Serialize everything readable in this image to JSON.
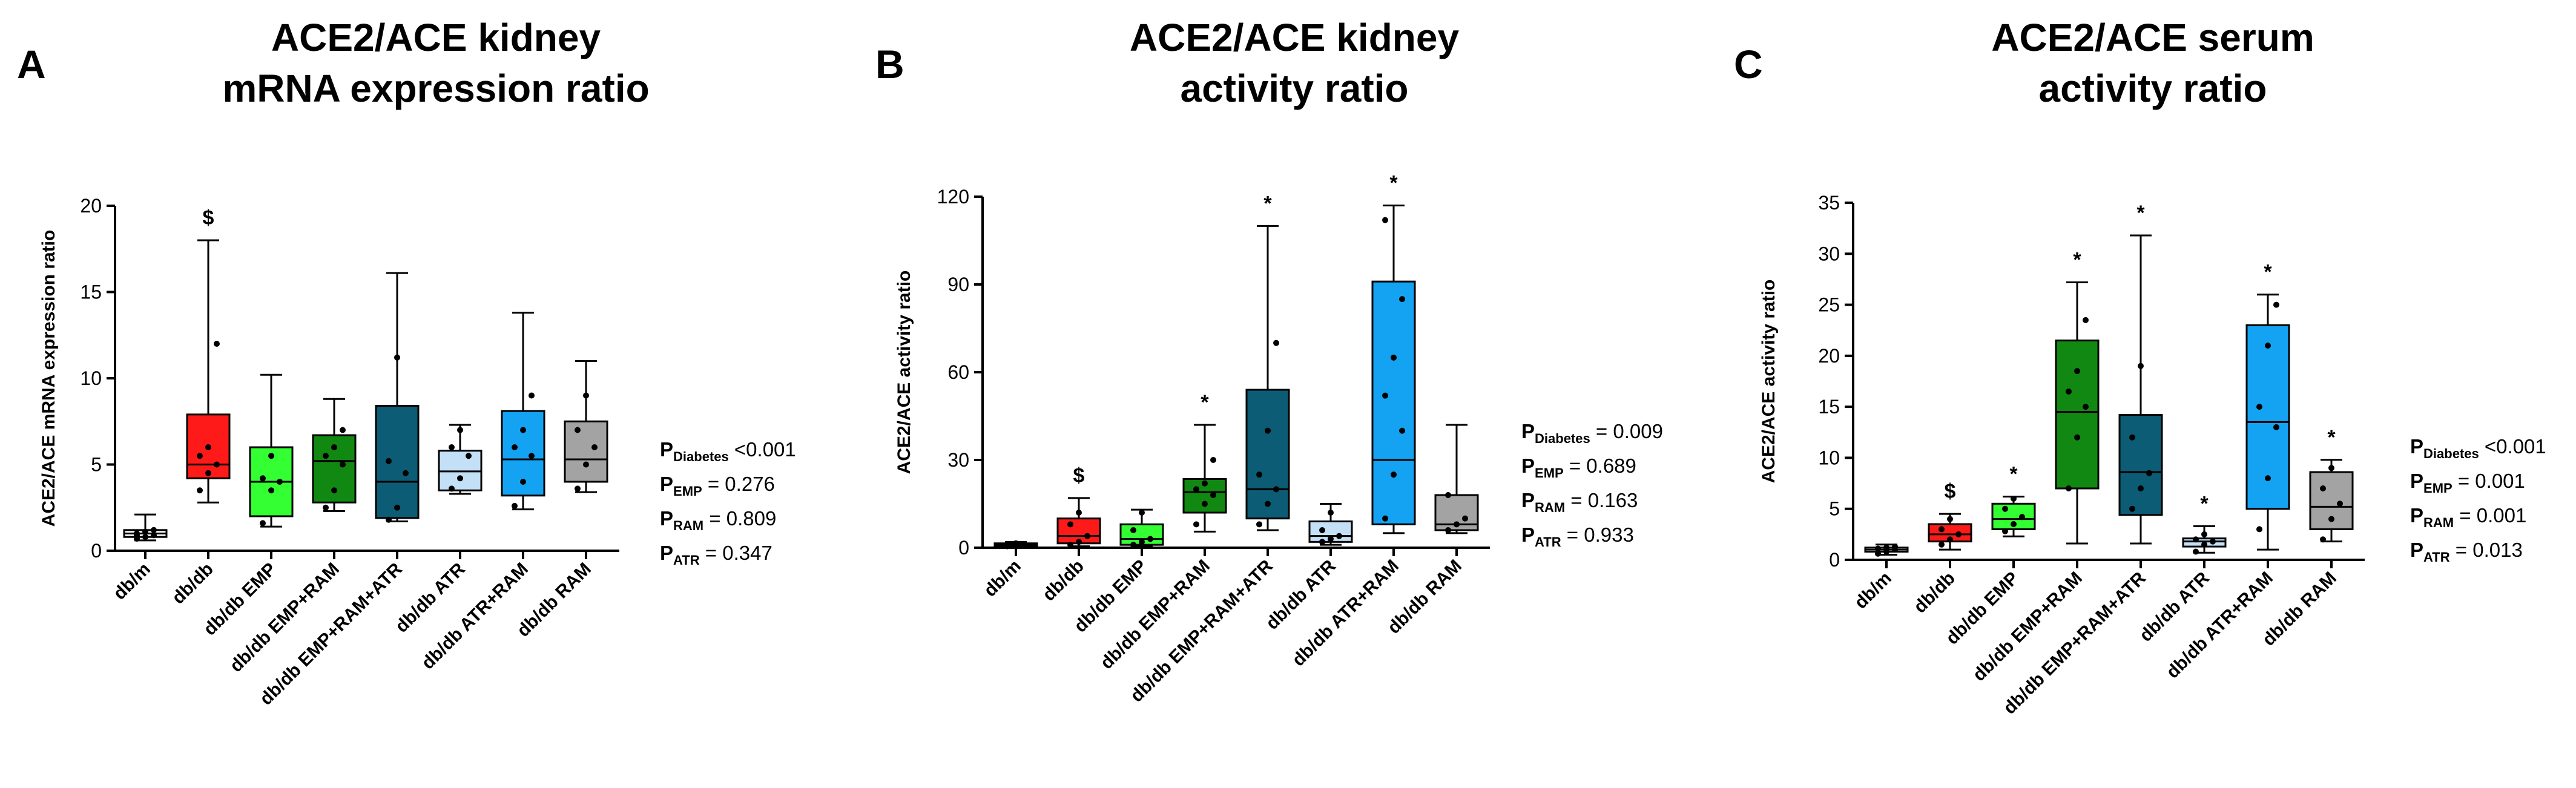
{
  "colors": {
    "db/m": "#ffffff",
    "db/db": "#ff1a1a",
    "db/db EMP": "#33ff33",
    "db/db EMP+RAM": "#118811",
    "db/db EMP+RAM+ATR": "#0d5c75",
    "db/db ATR": "#c4e0f6",
    "db/db ATR+RAM": "#14a3f2",
    "db/db RAM": "#a3a3a3"
  },
  "chart_data": [
    {
      "type": "box",
      "panel": "A",
      "title": [
        "ACE2/ACE kidney",
        "mRNA expression ratio"
      ],
      "ylabel": "ACE2/ACE mRNA expression ratio",
      "ylim": [
        0,
        20
      ],
      "yticks": [
        0,
        5,
        10,
        15,
        20
      ],
      "categories": [
        "db/m",
        "db/db",
        "db/db EMP",
        "db/db EMP+RAM",
        "db/db EMP+RAM+ATR",
        "db/db ATR",
        "db/db ATR+RAM",
        "db/db RAM"
      ],
      "boxes": [
        {
          "min": 0.6,
          "q1": 0.8,
          "median": 1.0,
          "q3": 1.2,
          "max": 2.1,
          "mark": ""
        },
        {
          "min": 2.8,
          "q1": 4.2,
          "median": 5.0,
          "q3": 7.9,
          "max": 18.0,
          "mark": "$"
        },
        {
          "min": 1.4,
          "q1": 2.0,
          "median": 4.0,
          "q3": 6.0,
          "max": 10.2,
          "mark": ""
        },
        {
          "min": 2.3,
          "q1": 2.8,
          "median": 5.2,
          "q3": 6.7,
          "max": 8.8,
          "mark": ""
        },
        {
          "min": 1.7,
          "q1": 1.9,
          "median": 4.0,
          "q3": 8.4,
          "max": 16.1,
          "mark": ""
        },
        {
          "min": 3.3,
          "q1": 3.5,
          "median": 4.6,
          "q3": 5.8,
          "max": 7.3,
          "mark": ""
        },
        {
          "min": 2.4,
          "q1": 3.2,
          "median": 5.3,
          "q3": 8.1,
          "max": 13.8,
          "mark": ""
        },
        {
          "min": 3.4,
          "q1": 4.0,
          "median": 5.3,
          "q3": 7.5,
          "max": 11.0,
          "mark": ""
        }
      ],
      "points": [
        [
          0.7,
          0.8,
          0.9,
          1.0,
          1.1,
          1.2,
          0.9
        ],
        [
          3.5,
          4.5,
          5.0,
          5.5,
          6.0,
          12.0
        ],
        [
          1.6,
          3.5,
          4.0,
          4.2,
          5.5
        ],
        [
          2.5,
          3.5,
          5.0,
          5.5,
          6.0,
          7.0
        ],
        [
          1.8,
          2.5,
          4.5,
          5.2,
          11.2
        ],
        [
          3.6,
          4.2,
          5.5,
          6.0,
          7.0
        ],
        [
          2.6,
          4.0,
          5.5,
          6.0,
          7.0,
          9.0
        ],
        [
          3.6,
          5.0,
          6.0,
          7.0,
          9.0
        ]
      ],
      "stats": [
        {
          "sub": "Diabetes",
          "text": " <0.001"
        },
        {
          "sub": "EMP",
          "text": " = 0.276"
        },
        {
          "sub": "RAM",
          "text": " = 0.809"
        },
        {
          "sub": "ATR",
          "text": " = 0.347"
        }
      ]
    },
    {
      "type": "box",
      "panel": "B",
      "title": [
        "ACE2/ACE kidney",
        "activity ratio"
      ],
      "ylabel": "ACE2/ACE activity ratio",
      "ylim": [
        0,
        120
      ],
      "yticks": [
        0,
        30,
        60,
        90,
        120
      ],
      "categories": [
        "db/m",
        "db/db",
        "db/db EMP",
        "db/db EMP+RAM",
        "db/db EMP+RAM+ATR",
        "db/db ATR",
        "db/db ATR+RAM",
        "db/db RAM"
      ],
      "boxes": [
        {
          "min": 0.3,
          "q1": 0.6,
          "median": 1.0,
          "q3": 1.5,
          "max": 2.0,
          "mark": ""
        },
        {
          "min": 0.5,
          "q1": 1.5,
          "median": 4.0,
          "q3": 10.0,
          "max": 17.0,
          "mark": "$"
        },
        {
          "min": 0.5,
          "q1": 1.0,
          "median": 3.0,
          "q3": 8.0,
          "max": 13.0,
          "mark": ""
        },
        {
          "min": 5.5,
          "q1": 12.0,
          "median": 19.0,
          "q3": 23.5,
          "max": 42.0,
          "mark": "*"
        },
        {
          "min": 6.0,
          "q1": 10.0,
          "median": 20.0,
          "q3": 54.0,
          "max": 110.0,
          "mark": "*"
        },
        {
          "min": 1.0,
          "q1": 2.0,
          "median": 4.0,
          "q3": 9.0,
          "max": 15.0,
          "mark": ""
        },
        {
          "min": 5.0,
          "q1": 8.0,
          "median": 30.0,
          "q3": 91.0,
          "max": 117.0,
          "mark": "*"
        },
        {
          "min": 5.0,
          "q1": 6.0,
          "median": 8.0,
          "q3": 18.0,
          "max": 42.0,
          "mark": ""
        }
      ],
      "points": [
        [
          0.5,
          0.8,
          1.0,
          1.2,
          1.5
        ],
        [
          1.0,
          2.0,
          4.0,
          8.0,
          12.0
        ],
        [
          1.0,
          2.0,
          3.0,
          6.0,
          12.0
        ],
        [
          8.0,
          15.0,
          18.0,
          20.0,
          22.0,
          30.0
        ],
        [
          8.0,
          15.0,
          20.0,
          25.0,
          40.0,
          70.0
        ],
        [
          2.0,
          3.0,
          4.0,
          6.0,
          12.0
        ],
        [
          10.0,
          25.0,
          40.0,
          52.0,
          65.0,
          85.0,
          112.0
        ],
        [
          6.0,
          8.0,
          10.0,
          18.0
        ]
      ],
      "stats": [
        {
          "sub": "Diabetes",
          "text": " = 0.009"
        },
        {
          "sub": "EMP",
          "text": " = 0.689"
        },
        {
          "sub": "RAM",
          "text": " = 0.163"
        },
        {
          "sub": "ATR",
          "text": " = 0.933"
        }
      ]
    },
    {
      "type": "box",
      "panel": "C",
      "title": [
        "ACE2/ACE serum",
        "activity ratio"
      ],
      "ylabel": "ACE2/ACE activity ratio",
      "ylim": [
        0,
        35
      ],
      "yticks": [
        0,
        5,
        10,
        15,
        20,
        25,
        30,
        35
      ],
      "categories": [
        "db/m",
        "db/db",
        "db/db EMP",
        "db/db EMP+RAM",
        "db/db EMP+RAM+ATR",
        "db/db ATR",
        "db/db ATR+RAM",
        "db/db RAM"
      ],
      "boxes": [
        {
          "min": 0.5,
          "q1": 0.8,
          "median": 1.0,
          "q3": 1.2,
          "max": 1.5,
          "mark": ""
        },
        {
          "min": 1.0,
          "q1": 1.8,
          "median": 2.5,
          "q3": 3.5,
          "max": 4.5,
          "mark": "$"
        },
        {
          "min": 2.3,
          "q1": 3.0,
          "median": 4.0,
          "q3": 5.5,
          "max": 6.2,
          "mark": "*"
        },
        {
          "min": 1.6,
          "q1": 7.0,
          "median": 14.5,
          "q3": 21.5,
          "max": 27.2,
          "mark": "*"
        },
        {
          "min": 1.6,
          "q1": 4.4,
          "median": 8.6,
          "q3": 14.2,
          "max": 31.8,
          "mark": "*"
        },
        {
          "min": 0.7,
          "q1": 1.3,
          "median": 1.8,
          "q3": 2.1,
          "max": 3.3,
          "mark": "*"
        },
        {
          "min": 1.0,
          "q1": 5.0,
          "median": 13.5,
          "q3": 23.0,
          "max": 26.0,
          "mark": "*"
        },
        {
          "min": 1.8,
          "q1": 3.0,
          "median": 5.2,
          "q3": 8.6,
          "max": 9.8,
          "mark": "*"
        }
      ],
      "points": [
        [
          0.6,
          0.8,
          1.0,
          1.1,
          1.2,
          1.3
        ],
        [
          1.5,
          2.0,
          2.5,
          3.0,
          4.0
        ],
        [
          2.8,
          3.5,
          4.2,
          5.0,
          6.0
        ],
        [
          7.0,
          12.0,
          15.0,
          16.5,
          18.5,
          23.5
        ],
        [
          5.0,
          7.0,
          8.5,
          12.0,
          19.0
        ],
        [
          0.8,
          1.5,
          1.8,
          2.0,
          2.5
        ],
        [
          3.0,
          8.0,
          13.0,
          15.0,
          21.0,
          25.0
        ],
        [
          2.0,
          4.0,
          5.5,
          7.0,
          9.0
        ]
      ],
      "stats": [
        {
          "sub": "Diabetes",
          "text": " <0.001"
        },
        {
          "sub": "EMP",
          "text": " = 0.001"
        },
        {
          "sub": "RAM",
          "text": " = 0.001"
        },
        {
          "sub": "ATR",
          "text": " = 0.013"
        }
      ]
    }
  ]
}
